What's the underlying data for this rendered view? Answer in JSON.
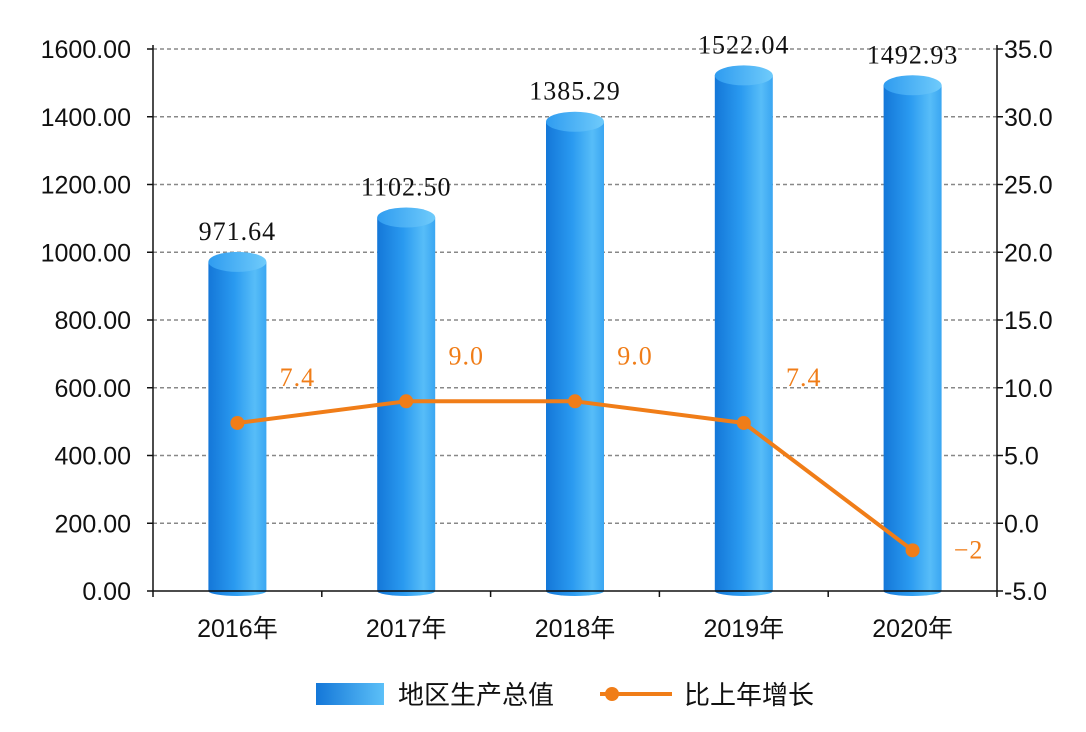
{
  "chart_data": {
    "type": "bar",
    "categories": [
      "2016年",
      "2017年",
      "2018年",
      "2019年",
      "2020年"
    ],
    "series": [
      {
        "name": "地区生产总值",
        "type": "bar",
        "axis": "left",
        "values": [
          971.64,
          1102.5,
          1385.29,
          1522.04,
          1492.93
        ],
        "labels": [
          "971.64",
          "1102.50",
          "1385.29",
          "1522.04",
          "1492.93"
        ]
      },
      {
        "name": "比上年增长",
        "type": "line",
        "axis": "right",
        "values": [
          7.4,
          9.0,
          9.0,
          7.4,
          -2
        ],
        "labels": [
          "7.4",
          "9.0",
          "9.0",
          "7.4",
          "−2"
        ]
      }
    ],
    "y_left": {
      "range": [
        0,
        1600
      ],
      "ticks": [
        "0.00",
        "200.00",
        "400.00",
        "600.00",
        "800.00",
        "1000.00",
        "1200.00",
        "1400.00",
        "1600.00"
      ]
    },
    "y_right": {
      "range": [
        -5,
        35
      ],
      "ticks": [
        "-5.0",
        "0.0",
        "5.0",
        "10.0",
        "15.0",
        "20.0",
        "25.0",
        "30.0",
        "35.0"
      ]
    },
    "grid": true,
    "legend_position": "bottom",
    "colors": {
      "bar": "#1a8ae8",
      "bar_light": "#5cc0f8",
      "line": "#f07d18",
      "grid": "#888888",
      "axis": "#111111"
    }
  }
}
